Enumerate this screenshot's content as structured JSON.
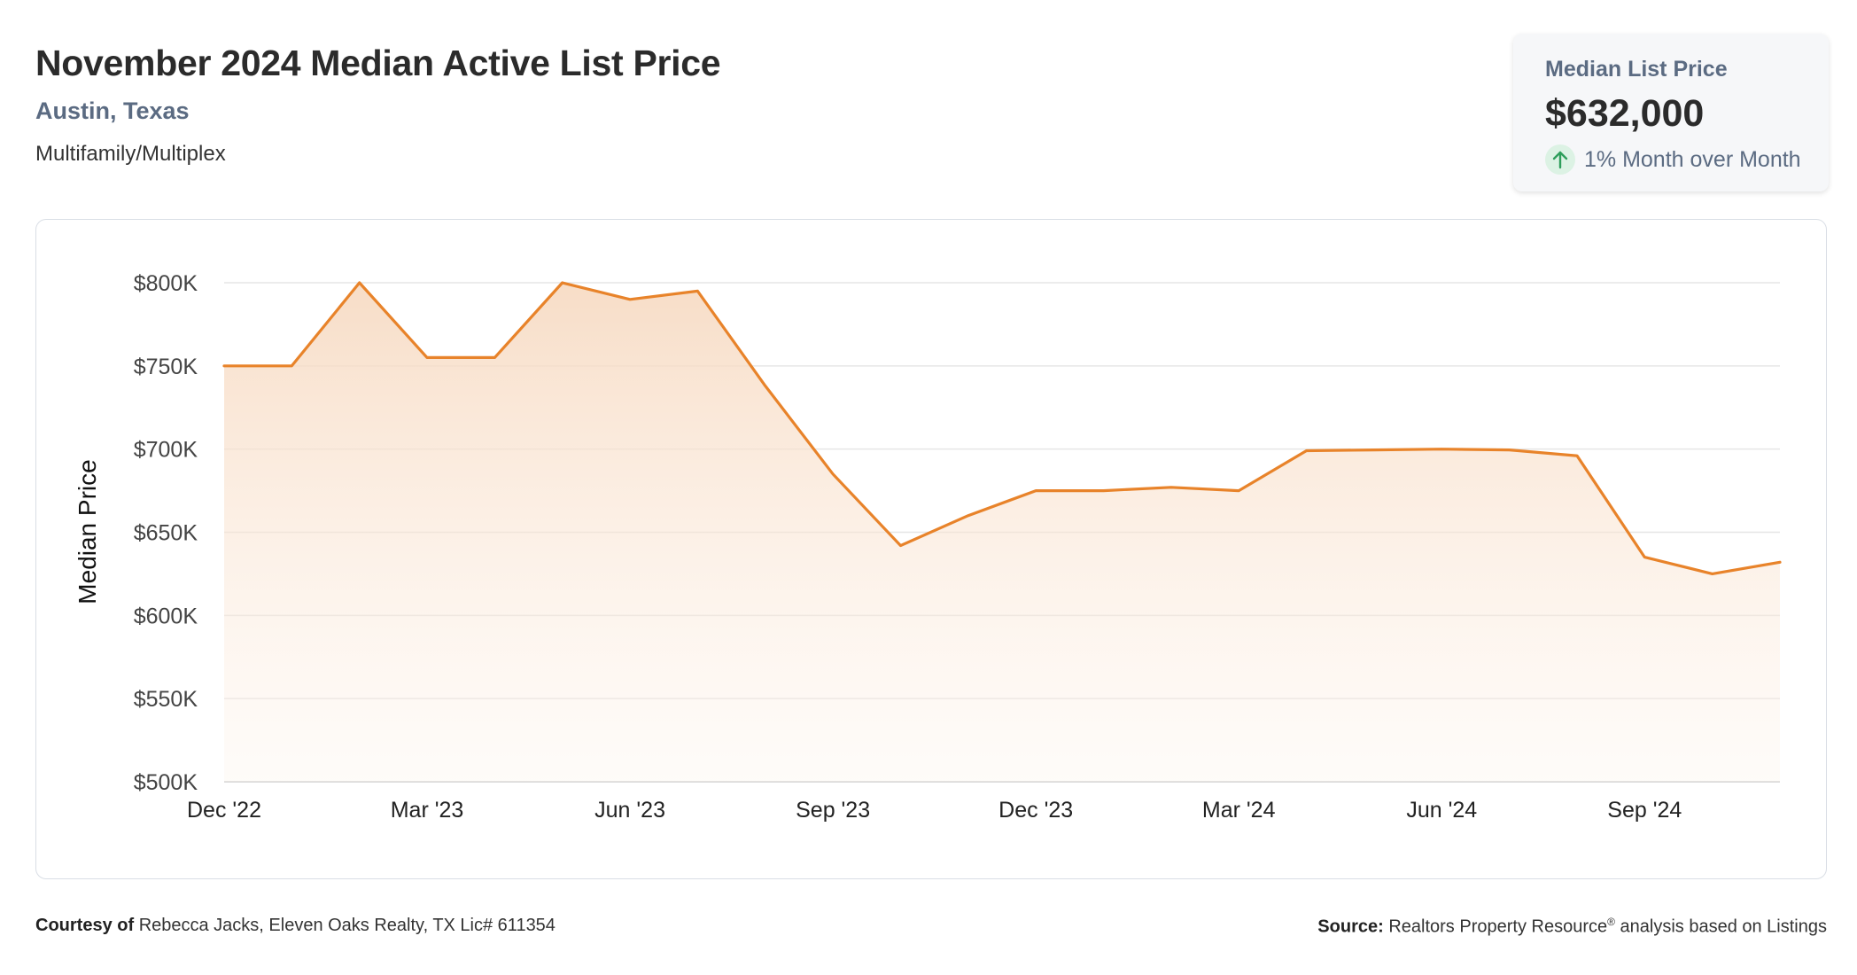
{
  "header": {
    "title": "November 2024 Median Active List Price",
    "location": "Austin, Texas",
    "property_type": "Multifamily/Multiplex"
  },
  "stat_card": {
    "label": "Median List Price",
    "value": "$632,000",
    "change": "1% Month over Month",
    "change_direction": "up",
    "change_color": "#2e9e5b",
    "change_icon": "arrow-up-icon"
  },
  "chart_data": {
    "type": "area",
    "ylabel": "Median Price",
    "xlabel": "",
    "ylim": [
      500000,
      800000
    ],
    "y_ticks": [
      {
        "value": 800000,
        "label": "$800K"
      },
      {
        "value": 750000,
        "label": "$750K"
      },
      {
        "value": 700000,
        "label": "$700K"
      },
      {
        "value": 650000,
        "label": "$650K"
      },
      {
        "value": 600000,
        "label": "$600K"
      },
      {
        "value": 550000,
        "label": "$550K"
      },
      {
        "value": 500000,
        "label": "$500K"
      }
    ],
    "x_ticks": [
      {
        "date": "2022-12",
        "label": "Dec '22"
      },
      {
        "date": "2023-03",
        "label": "Mar '23"
      },
      {
        "date": "2023-06",
        "label": "Jun '23"
      },
      {
        "date": "2023-09",
        "label": "Sep '23"
      },
      {
        "date": "2023-12",
        "label": "Dec '23"
      },
      {
        "date": "2024-03",
        "label": "Mar '24"
      },
      {
        "date": "2024-06",
        "label": "Jun '24"
      },
      {
        "date": "2024-09",
        "label": "Sep '24"
      }
    ],
    "series": [
      {
        "x": [
          "2022-12",
          "2023-01",
          "2023-02",
          "2023-03",
          "2023-04",
          "2023-05",
          "2023-06",
          "2023-07",
          "2023-08",
          "2023-09",
          "2023-10",
          "2023-11",
          "2023-12",
          "2024-01",
          "2024-02",
          "2024-03",
          "2024-04",
          "2024-05",
          "2024-06",
          "2024-07",
          "2024-08",
          "2024-09",
          "2024-10",
          "2024-11"
        ],
        "y": [
          750000,
          750000,
          800000,
          755000,
          755000,
          800000,
          790000,
          795000,
          738000,
          685000,
          642000,
          660000,
          675000,
          675000,
          677000,
          675000,
          699000,
          699500,
          700000,
          699500,
          696000,
          635000,
          625000,
          632000
        ]
      }
    ],
    "line_color": "#e8832a",
    "fill_color": "#f6d7bd",
    "grid": true,
    "legend": "none"
  },
  "footer": {
    "courtesy_label": "Courtesy of",
    "courtesy_text": "Rebecca Jacks, Eleven Oaks Realty, TX Lic# 611354",
    "source_label": "Source:",
    "source_text": "Realtors Property Resource",
    "source_mark": "®",
    "source_suffix": "analysis based on Listings"
  }
}
